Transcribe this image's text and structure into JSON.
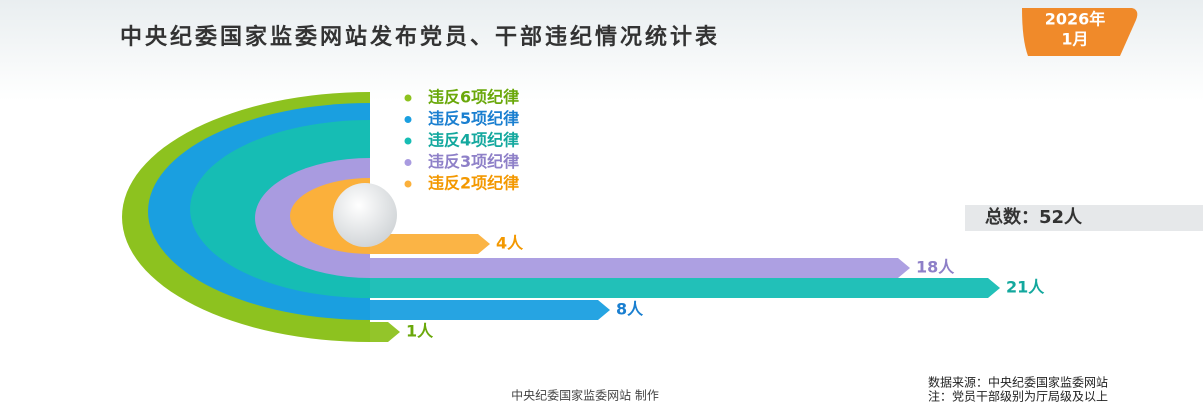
{
  "chart_data": {
    "type": "arc-bar",
    "title": "中央纪委国家监委网站发布党员、干部违纪情况统计表",
    "badge": [
      "2026年",
      "1月"
    ],
    "categories": [
      "违反6项纪律",
      "违反5项纪律",
      "违反4项纪律",
      "违反3项纪律",
      "违反2项纪律"
    ],
    "values": [
      1,
      8,
      21,
      18,
      4
    ],
    "value_labels": [
      "1人",
      "8人",
      "21人",
      "18人",
      "4人"
    ],
    "colors": [
      "#8dc21f",
      "#1a9fe0",
      "#16bdb4",
      "#a99be0",
      "#fbb03b"
    ],
    "total": {
      "value": 52,
      "label": "总数：52人"
    },
    "credit": "中央纪委国家监委网站 制作",
    "source": "数据来源：中央纪委国家监委网站",
    "note": "注：党员干部级别为厅局级及以上"
  }
}
